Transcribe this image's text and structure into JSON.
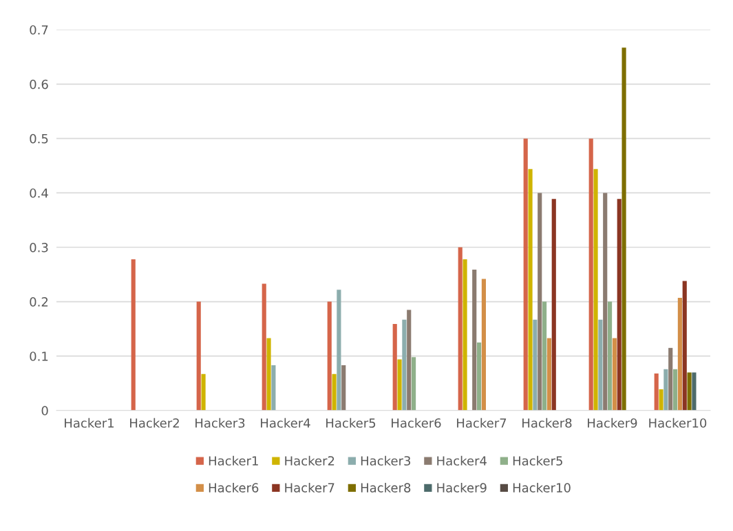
{
  "chart_data": {
    "type": "bar",
    "categories": [
      "Hacker1",
      "Hacker2",
      "Hacker3",
      "Hacker4",
      "Hacker5",
      "Hacker6",
      "Hacker7",
      "Hacker8",
      "Hacker9",
      "Hacker10"
    ],
    "series": [
      {
        "name": "Hacker1",
        "color": "#d5654a",
        "values": [
          0,
          0.278,
          0.2,
          0.233,
          0.2,
          0.159,
          0.3,
          0.5,
          0.5,
          0.068
        ]
      },
      {
        "name": "Hacker2",
        "color": "#cfb400",
        "values": [
          0,
          0,
          0.067,
          0.133,
          0.067,
          0.094,
          0.278,
          0.444,
          0.444,
          0.039
        ]
      },
      {
        "name": "Hacker3",
        "color": "#8cadad",
        "values": [
          0,
          0,
          0,
          0.083,
          0.222,
          0.167,
          0,
          0.167,
          0.167,
          0.076
        ]
      },
      {
        "name": "Hacker4",
        "color": "#8b7b70",
        "values": [
          0,
          0,
          0,
          0,
          0.083,
          0.185,
          0.259,
          0.4,
          0.4,
          0.115
        ]
      },
      {
        "name": "Hacker5",
        "color": "#8fb08a",
        "values": [
          0,
          0,
          0,
          0,
          0,
          0.098,
          0.125,
          0.2,
          0.2,
          0.076
        ]
      },
      {
        "name": "Hacker6",
        "color": "#d38f48",
        "values": [
          0,
          0,
          0,
          0,
          0,
          0,
          0.242,
          0.133,
          0.133,
          0.207
        ]
      },
      {
        "name": "Hacker7",
        "color": "#8b3522",
        "values": [
          0,
          0,
          0,
          0,
          0,
          0,
          0,
          0.389,
          0.389,
          0.238
        ]
      },
      {
        "name": "Hacker8",
        "color": "#7e6e00",
        "values": [
          0,
          0,
          0,
          0,
          0,
          0,
          0,
          0,
          0.667,
          0.07
        ]
      },
      {
        "name": "Hacker9",
        "color": "#4d6b6b",
        "values": [
          0,
          0,
          0,
          0,
          0,
          0,
          0,
          0,
          0,
          0.07
        ]
      },
      {
        "name": "Hacker10",
        "color": "#574b44",
        "values": [
          0,
          0,
          0,
          0,
          0,
          0,
          0,
          0,
          0,
          0
        ]
      }
    ],
    "ylim": [
      0,
      0.7
    ],
    "yticks": [
      0,
      0.1,
      0.2,
      0.3,
      0.4,
      0.5,
      0.6,
      0.7
    ],
    "grid": "y",
    "legend": "bottom"
  }
}
